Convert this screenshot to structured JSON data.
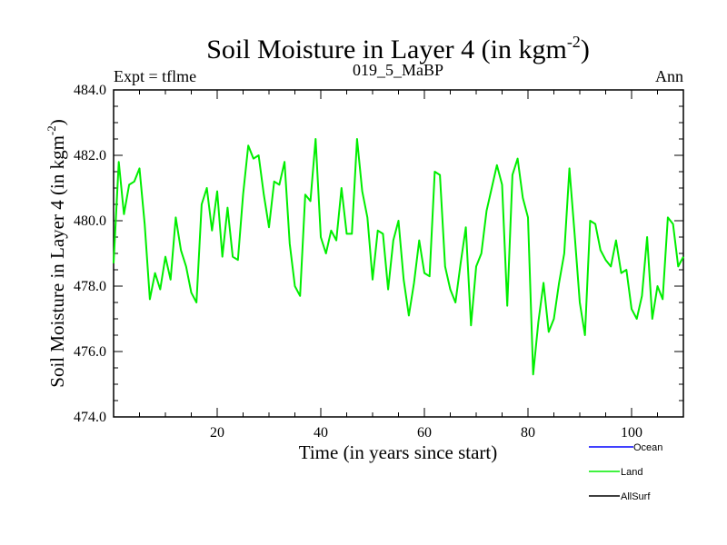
{
  "chart_data": {
    "type": "line",
    "title_main": "Soil Moisture in Layer 4 (in kgm",
    "title_sup": "-2",
    "title_end": ")",
    "left_label": "Expt = tflme",
    "center_label": "019_5_MaBP",
    "right_label": "Ann",
    "xlabel": "Time (in years since start)",
    "ylabel_main": "Soil Moisture in Layer 4 (in kgm",
    "ylabel_sup": "-2",
    "ylabel_end": ")",
    "xlim": [
      0,
      110
    ],
    "ylim": [
      474.0,
      484.0
    ],
    "xticks": [
      20,
      40,
      60,
      80,
      100
    ],
    "xtick_labels": [
      "20",
      "40",
      "60",
      "80",
      "100"
    ],
    "yticks": [
      474.0,
      476.0,
      478.0,
      480.0,
      482.0,
      484.0
    ],
    "ytick_labels": [
      "474.0",
      "476.0",
      "478.0",
      "480.0",
      "482.0",
      "484.0"
    ],
    "series": [
      {
        "name": "Ocean",
        "color": "#0000ff",
        "values": []
      },
      {
        "name": "Land",
        "color": "#00ee00",
        "x": [
          0,
          1,
          2,
          3,
          4,
          5,
          6,
          7,
          8,
          9,
          10,
          11,
          12,
          13,
          14,
          15,
          16,
          17,
          18,
          19,
          20,
          21,
          22,
          23,
          24,
          25,
          26,
          27,
          28,
          29,
          30,
          31,
          32,
          33,
          34,
          35,
          36,
          37,
          38,
          39,
          40,
          41,
          42,
          43,
          44,
          45,
          46,
          47,
          48,
          49,
          50,
          51,
          52,
          53,
          54,
          55,
          56,
          57,
          58,
          59,
          60,
          61,
          62,
          63,
          64,
          65,
          66,
          67,
          68,
          69,
          70,
          71,
          72,
          73,
          74,
          75,
          76,
          77,
          78,
          79,
          80,
          81,
          82,
          83,
          84,
          85,
          86,
          87,
          88,
          89,
          90,
          91,
          92,
          93,
          94,
          95,
          96,
          97,
          98,
          99,
          100,
          101,
          102,
          103,
          104,
          105,
          106,
          107,
          108,
          109,
          110
        ],
        "values": [
          478.7,
          481.8,
          480.2,
          481.1,
          481.2,
          481.6,
          479.9,
          477.6,
          478.4,
          477.9,
          478.9,
          478.2,
          480.1,
          479.1,
          478.6,
          477.8,
          477.5,
          480.5,
          481.0,
          479.7,
          480.9,
          478.9,
          480.4,
          478.9,
          478.8,
          480.8,
          482.3,
          481.9,
          482.0,
          480.8,
          479.8,
          481.2,
          481.1,
          481.8,
          479.3,
          478.0,
          477.7,
          480.8,
          480.6,
          482.5,
          479.5,
          479.0,
          479.7,
          479.4,
          481.0,
          479.6,
          479.6,
          482.5,
          480.9,
          480.1,
          478.2,
          479.7,
          479.6,
          477.9,
          479.4,
          480.0,
          478.2,
          477.1,
          478.1,
          479.4,
          478.4,
          478.3,
          481.5,
          481.4,
          478.6,
          477.9,
          477.5,
          478.7,
          479.8,
          476.8,
          478.6,
          479.0,
          480.3,
          481.0,
          481.7,
          481.1,
          477.4,
          481.4,
          481.9,
          480.7,
          480.1,
          475.3,
          476.9,
          478.1,
          476.6,
          477.0,
          478.1,
          479.0,
          481.6,
          479.6,
          477.5,
          476.5,
          480.0,
          479.9,
          479.1,
          478.8,
          478.6,
          479.4,
          478.4,
          478.5,
          477.3,
          477.0,
          477.7,
          479.5,
          477.0,
          478.0,
          477.6,
          480.1,
          479.9,
          478.6,
          478.9
        ]
      },
      {
        "name": "AllSurf",
        "color": "#000000",
        "values": []
      }
    ],
    "legend_position": "bottom-right"
  }
}
